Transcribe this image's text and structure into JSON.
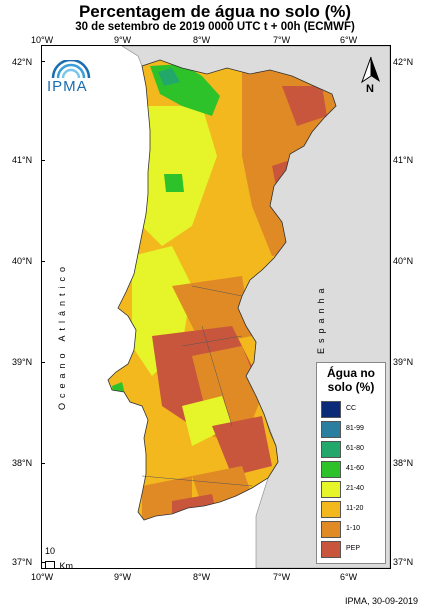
{
  "header": {
    "title": "Percentagem de água no solo (%)",
    "subtitle": "30 de setembro de 2019 0000 UTC t + 00h (ECMWF)"
  },
  "axes": {
    "longitude_labels": [
      "10°W",
      "9°W",
      "8°W",
      "7°W",
      "6°W"
    ],
    "latitude_labels": [
      "42°N",
      "41°N",
      "40°N",
      "39°N",
      "38°N",
      "37°N"
    ]
  },
  "map_labels": {
    "ocean": "Oceano Atlântico",
    "spain": "Espanha"
  },
  "logo": {
    "text": "IPMA",
    "icon": "ipma-rainbow-logo"
  },
  "north_arrow": {
    "label": "N",
    "icon": "north-arrow-icon"
  },
  "scale_bar": {
    "value": "10",
    "unit": "Km"
  },
  "legend": {
    "title_line1": "Água no",
    "title_line2": "solo (%)",
    "items": [
      {
        "label": "CC",
        "color": "#0b2a78"
      },
      {
        "label": "81-99",
        "color": "#2a7fa0"
      },
      {
        "label": "61-80",
        "color": "#22a86a"
      },
      {
        "label": "41-60",
        "color": "#2ec22a"
      },
      {
        "label": "21-40",
        "color": "#e6f52a"
      },
      {
        "label": "11-20",
        "color": "#f2b81e"
      },
      {
        "label": "1-10",
        "color": "#e08a26"
      },
      {
        "label": "PEP",
        "color": "#c8563c"
      }
    ]
  },
  "footer": {
    "credit": "IPMA, 30-09-2019"
  },
  "colors": {
    "spain_land": "#dcdcdc",
    "ocean": "#ffffff",
    "border": "#555555"
  }
}
